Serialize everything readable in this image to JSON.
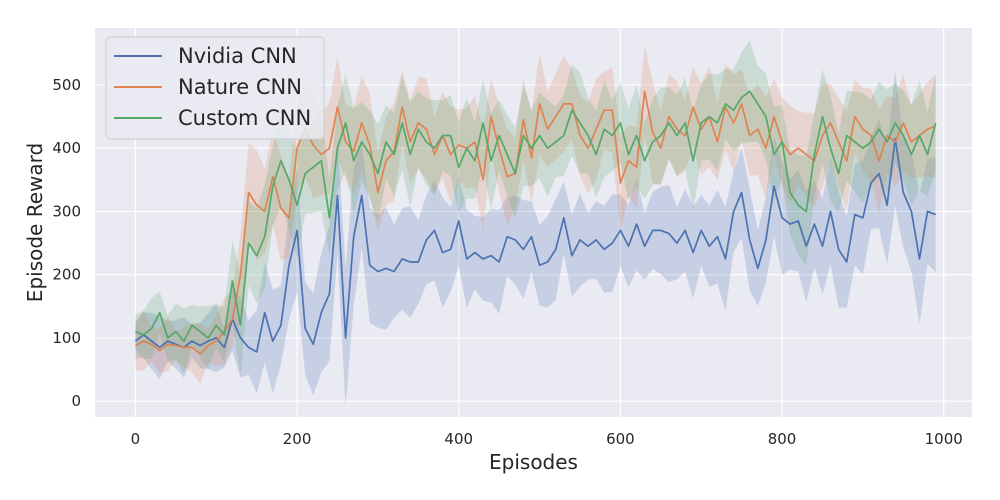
{
  "chart_data": {
    "type": "line",
    "title": "",
    "xlabel": "Episodes",
    "ylabel": "Episode Reward",
    "xlim": [
      -50,
      1035
    ],
    "ylim": [
      -25,
      590
    ],
    "xticks": [
      0,
      200,
      400,
      600,
      800,
      1000
    ],
    "yticks": [
      0,
      100,
      200,
      300,
      400,
      500
    ],
    "grid": true,
    "legend_position": "top-left",
    "x": [
      0,
      10,
      20,
      30,
      40,
      50,
      60,
      70,
      80,
      90,
      100,
      110,
      120,
      130,
      140,
      150,
      160,
      170,
      180,
      190,
      200,
      210,
      220,
      230,
      240,
      250,
      260,
      270,
      280,
      290,
      300,
      310,
      320,
      330,
      340,
      350,
      360,
      370,
      380,
      390,
      400,
      410,
      420,
      430,
      440,
      450,
      460,
      470,
      480,
      490,
      500,
      510,
      520,
      530,
      540,
      550,
      560,
      570,
      580,
      590,
      600,
      610,
      620,
      630,
      640,
      650,
      660,
      670,
      680,
      690,
      700,
      710,
      720,
      730,
      740,
      750,
      760,
      770,
      780,
      790,
      800,
      810,
      820,
      830,
      840,
      850,
      860,
      870,
      880,
      890,
      900,
      910,
      920,
      930,
      940,
      950,
      960,
      970,
      980,
      990
    ],
    "series": [
      {
        "name": "Nvidia CNN",
        "color": "#4c72b0",
        "values": [
          95,
          105,
          95,
          85,
          95,
          90,
          85,
          95,
          88,
          95,
          100,
          85,
          130,
          100,
          85,
          78,
          140,
          95,
          120,
          215,
          270,
          115,
          90,
          140,
          170,
          325,
          100,
          260,
          325,
          215,
          205,
          210,
          205,
          225,
          220,
          220,
          255,
          270,
          235,
          240,
          285,
          225,
          235,
          225,
          230,
          220,
          260,
          255,
          240,
          260,
          215,
          220,
          240,
          290,
          230,
          255,
          245,
          255,
          240,
          250,
          270,
          245,
          280,
          245,
          270,
          270,
          265,
          250,
          270,
          235,
          270,
          245,
          260,
          225,
          300,
          330,
          255,
          210,
          255,
          340,
          290,
          280,
          285,
          245,
          280,
          245,
          300,
          240,
          220,
          295,
          290,
          345,
          360,
          310,
          415,
          330,
          300,
          225,
          300,
          295
        ],
        "band_width": [
          40,
          40,
          40,
          38,
          40,
          38,
          40,
          38,
          40,
          40,
          42,
          40,
          50,
          55,
          55,
          70,
          75,
          70,
          70,
          85,
          90,
          85,
          85,
          90,
          95,
          100,
          110,
          100,
          95,
          95,
          85,
          85,
          82,
          80,
          80,
          78,
          75,
          75,
          75,
          75,
          72,
          70,
          70,
          70,
          70,
          70,
          70,
          70,
          70,
          68,
          68,
          68,
          68,
          65,
          65,
          65,
          65,
          65,
          65,
          65,
          65,
          65,
          65,
          65,
          65,
          65,
          65,
          65,
          65,
          65,
          68,
          68,
          70,
          70,
          72,
          72,
          72,
          72,
          72,
          75,
          78,
          80,
          80,
          80,
          80,
          80,
          80,
          80,
          80,
          80,
          82,
          85,
          90,
          90,
          95,
          95,
          95,
          95,
          95,
          95
        ]
      },
      {
        "name": "Nature CNN",
        "color": "#dd8452",
        "values": [
          88,
          95,
          90,
          80,
          90,
          88,
          85,
          85,
          75,
          88,
          95,
          110,
          130,
          200,
          330,
          310,
          300,
          355,
          305,
          290,
          400,
          430,
          405,
          390,
          400,
          465,
          410,
          395,
          440,
          405,
          330,
          380,
          395,
          465,
          410,
          440,
          430,
          390,
          420,
          390,
          405,
          400,
          410,
          350,
          450,
          400,
          355,
          360,
          445,
          385,
          470,
          430,
          450,
          470,
          470,
          420,
          400,
          430,
          460,
          460,
          345,
          380,
          370,
          490,
          425,
          400,
          450,
          430,
          420,
          465,
          430,
          450,
          410,
          465,
          440,
          470,
          420,
          430,
          400,
          450,
          410,
          390,
          400,
          390,
          380,
          420,
          440,
          410,
          380,
          450,
          430,
          420,
          380,
          420,
          410,
          440,
          410,
          420,
          430,
          435
        ],
        "band_width": [
          35,
          35,
          35,
          35,
          35,
          35,
          35,
          35,
          35,
          35,
          40,
          45,
          55,
          70,
          75,
          75,
          75,
          75,
          75,
          75,
          72,
          72,
          72,
          72,
          72,
          72,
          72,
          72,
          70,
          70,
          70,
          70,
          70,
          70,
          70,
          68,
          68,
          68,
          68,
          68,
          68,
          68,
          68,
          68,
          68,
          68,
          68,
          68,
          68,
          68,
          68,
          68,
          68,
          68,
          68,
          68,
          68,
          68,
          68,
          68,
          68,
          68,
          68,
          68,
          68,
          68,
          68,
          68,
          68,
          68,
          68,
          68,
          68,
          68,
          68,
          68,
          68,
          68,
          68,
          68,
          70,
          70,
          70,
          70,
          70,
          70,
          70,
          70,
          70,
          70,
          70,
          70,
          70,
          70,
          70,
          70,
          70,
          70,
          70,
          70
        ]
      },
      {
        "name": "Custom CNN",
        "color": "#55a868",
        "values": [
          110,
          105,
          115,
          140,
          100,
          110,
          95,
          120,
          110,
          100,
          120,
          105,
          190,
          120,
          250,
          230,
          260,
          340,
          380,
          350,
          310,
          360,
          370,
          380,
          290,
          400,
          440,
          380,
          410,
          390,
          360,
          410,
          390,
          440,
          390,
          430,
          410,
          400,
          420,
          420,
          370,
          400,
          380,
          440,
          380,
          420,
          390,
          360,
          420,
          400,
          420,
          400,
          410,
          420,
          460,
          440,
          420,
          390,
          430,
          420,
          440,
          390,
          420,
          380,
          410,
          420,
          440,
          420,
          440,
          380,
          440,
          450,
          440,
          470,
          460,
          480,
          490,
          470,
          450,
          390,
          410,
          330,
          310,
          300,
          390,
          450,
          400,
          360,
          420,
          410,
          400,
          410,
          430,
          410,
          440,
          420,
          390,
          420,
          390,
          440
        ],
        "band_width": [
          35,
          38,
          40,
          45,
          40,
          40,
          40,
          40,
          40,
          42,
          45,
          48,
          60,
          70,
          75,
          75,
          75,
          75,
          75,
          75,
          72,
          72,
          72,
          72,
          72,
          72,
          72,
          72,
          70,
          70,
          70,
          70,
          70,
          70,
          70,
          68,
          68,
          68,
          68,
          68,
          68,
          68,
          68,
          68,
          68,
          68,
          68,
          68,
          68,
          68,
          68,
          68,
          68,
          68,
          68,
          68,
          68,
          68,
          68,
          68,
          68,
          68,
          68,
          68,
          68,
          68,
          68,
          68,
          68,
          68,
          68,
          68,
          68,
          68,
          68,
          68,
          68,
          68,
          68,
          68,
          70,
          70,
          75,
          75,
          75,
          75,
          75,
          75,
          75,
          75,
          75,
          75,
          75,
          75,
          75,
          75,
          75,
          75,
          75,
          75
        ]
      }
    ]
  }
}
